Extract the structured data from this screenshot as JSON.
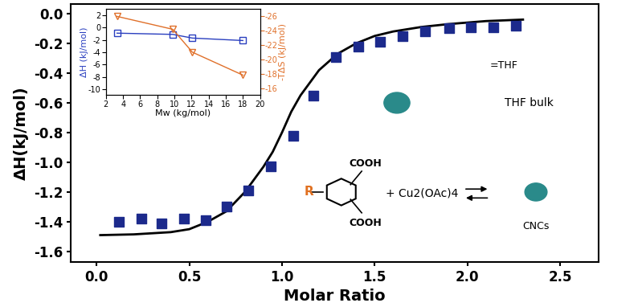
{
  "chart_data": [
    {
      "type": "scatter",
      "x_label": "Molar Ratio",
      "y_label": "ΔH(kJ/mol)",
      "xlim": [
        -0.14,
        2.71
      ],
      "ylim": [
        -1.67,
        0.065
      ],
      "xticks": [
        0.0,
        0.5,
        1.0,
        1.5,
        2.0,
        2.5
      ],
      "yticks": [
        -1.6,
        -1.4,
        -1.2,
        -1.0,
        -0.8,
        -0.6,
        -0.4,
        -0.2,
        0.0
      ],
      "series": [
        {
          "type": "scatter",
          "marker": "s",
          "color": "#1c2a8c",
          "x": [
            0.12,
            0.24,
            0.35,
            0.47,
            0.59,
            0.7,
            0.82,
            0.94,
            1.06,
            1.17,
            1.29,
            1.41,
            1.53,
            1.65,
            1.77,
            1.9,
            2.02,
            2.14,
            2.26
          ],
          "values": [
            -1.4,
            -1.38,
            -1.41,
            -1.38,
            -1.39,
            -1.3,
            -1.19,
            -1.03,
            -0.82,
            -0.55,
            -0.29,
            -0.22,
            -0.19,
            -0.15,
            -0.12,
            -0.1,
            -0.09,
            -0.09,
            -0.08
          ]
        },
        {
          "type": "line",
          "line_style": "solid",
          "color": "#000000",
          "x": [
            0.02,
            0.2,
            0.4,
            0.5,
            0.6,
            0.7,
            0.8,
            0.9,
            0.95,
            1.0,
            1.05,
            1.1,
            1.2,
            1.3,
            1.4,
            1.5,
            1.6,
            1.75,
            1.9,
            2.1,
            2.3
          ],
          "values": [
            -1.49,
            -1.485,
            -1.47,
            -1.45,
            -1.4,
            -1.33,
            -1.2,
            -1.03,
            -0.93,
            -0.8,
            -0.66,
            -0.55,
            -0.38,
            -0.27,
            -0.2,
            -0.15,
            -0.12,
            -0.09,
            -0.07,
            -0.05,
            -0.04
          ]
        }
      ],
      "annotations": [
        "COOH",
        "COOH",
        "R",
        "+ Cu2(OAc)4",
        "CNCs",
        "=THF",
        "THF bulk"
      ]
    },
    {
      "type": "line",
      "x_label": "Mw (kg/mol)",
      "y_label": "ΔH (kJ/mol)",
      "y2_label": "-TΔS (kJ/mol)",
      "xlim": [
        2,
        20
      ],
      "ylim": [
        -11,
        3
      ],
      "y2lim": [
        -15,
        -27
      ],
      "xticks": [
        2,
        4,
        6,
        8,
        10,
        12,
        14,
        16,
        18,
        20
      ],
      "yticks": [
        -10,
        -8,
        -6,
        -4,
        -2,
        0,
        2
      ],
      "y2ticks": [
        -26,
        -24,
        -22,
        -20,
        -18,
        -16
      ],
      "x": [
        3.3,
        9.8,
        12.1,
        18.0
      ],
      "series": [
        {
          "color": "#2a3fbf",
          "marker": "s",
          "line_style": "solid",
          "values": [
            -0.9,
            -1.1,
            -1.7,
            -2.1
          ]
        },
        {
          "color": "#e0702a",
          "marker": "v",
          "line_style": "solid",
          "axis": "y2",
          "values": [
            -26.0,
            -24.2,
            -21.0,
            -17.8
          ]
        }
      ]
    }
  ]
}
